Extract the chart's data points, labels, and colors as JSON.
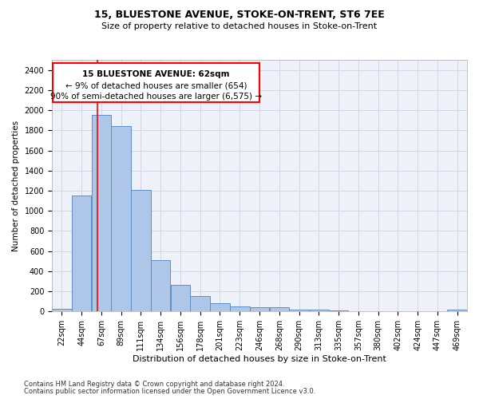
{
  "title": "15, BLUESTONE AVENUE, STOKE-ON-TRENT, ST6 7EE",
  "subtitle": "Size of property relative to detached houses in Stoke-on-Trent",
  "xlabel": "Distribution of detached houses by size in Stoke-on-Trent",
  "ylabel": "Number of detached properties",
  "footer_line1": "Contains HM Land Registry data © Crown copyright and database right 2024.",
  "footer_line2": "Contains public sector information licensed under the Open Government Licence v3.0.",
  "annotation_line1": "15 BLUESTONE AVENUE: 62sqm",
  "annotation_line2": "← 9% of detached houses are smaller (654)",
  "annotation_line3": "90% of semi-detached houses are larger (6,575) →",
  "bar_color": "#aec6e8",
  "bar_edge_color": "#5b8fc9",
  "grid_color": "#d0d8e8",
  "bg_color": "#eef2f8",
  "categories": [
    "22sqm",
    "44sqm",
    "67sqm",
    "89sqm",
    "111sqm",
    "134sqm",
    "156sqm",
    "178sqm",
    "201sqm",
    "223sqm",
    "246sqm",
    "268sqm",
    "290sqm",
    "313sqm",
    "335sqm",
    "357sqm",
    "380sqm",
    "402sqm",
    "424sqm",
    "447sqm",
    "469sqm"
  ],
  "bin_edges": [
    11,
    33,
    55,
    77,
    99,
    121,
    143,
    165,
    187,
    209,
    231,
    253,
    275,
    297,
    319,
    341,
    363,
    385,
    407,
    429,
    451,
    473
  ],
  "values": [
    30,
    1150,
    1950,
    1840,
    1210,
    510,
    265,
    155,
    80,
    50,
    45,
    42,
    18,
    22,
    14,
    0,
    0,
    0,
    0,
    0,
    20
  ],
  "ylim": [
    0,
    2500
  ],
  "yticks": [
    0,
    200,
    400,
    600,
    800,
    1000,
    1200,
    1400,
    1600,
    1800,
    2000,
    2200,
    2400
  ],
  "red_line_x": 62,
  "title_fontsize": 9,
  "subtitle_fontsize": 8,
  "xlabel_fontsize": 8,
  "ylabel_fontsize": 7.5,
  "tick_fontsize": 7,
  "footer_fontsize": 6,
  "ann_fontsize": 7.5
}
